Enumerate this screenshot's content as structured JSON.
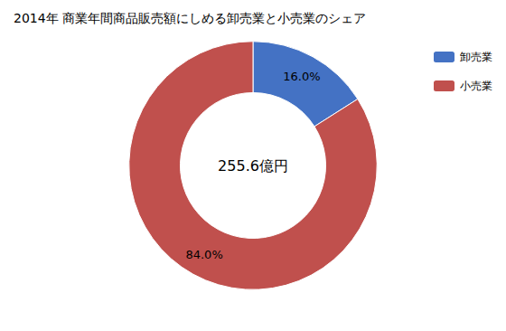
{
  "chart_data": {
    "type": "donut",
    "title": "2014年 商業年間商品販売額にしめる卸売業と小売業のシェア",
    "categories": [
      "卸売業",
      "小売業"
    ],
    "values": [
      16.0,
      84.0
    ],
    "value_labels": [
      "16.0%",
      "84.0%"
    ],
    "data_labels": true,
    "colors": [
      "#4472C4",
      "#C0504D"
    ],
    "legend": "upper right",
    "annotations": [
      "255.6億円"
    ]
  }
}
